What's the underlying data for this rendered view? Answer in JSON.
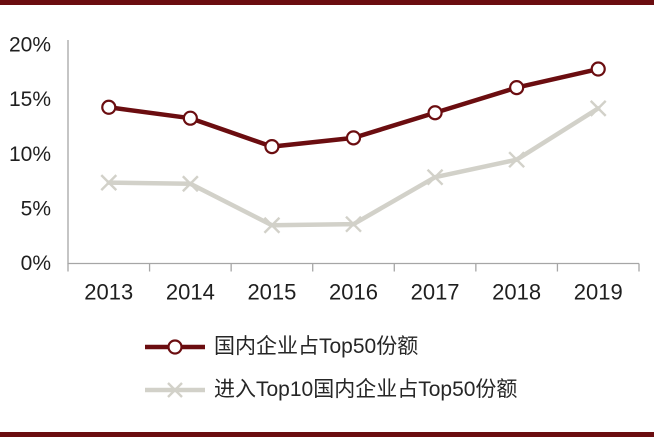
{
  "frame": {
    "color": "#6b0d10"
  },
  "axes": {
    "color": "#a6a6a6",
    "tick_label_color": "#1f1f1f"
  },
  "chart_data": {
    "type": "line",
    "title": "",
    "xlabel": "",
    "ylabel": "",
    "categories": [
      "2013",
      "2014",
      "2015",
      "2016",
      "2017",
      "2018",
      "2019"
    ],
    "series": [
      {
        "name": "国内企业占Top50份额",
        "color": "#6b0d10",
        "marker": "circle-open",
        "values": [
          14.3,
          13.3,
          10.7,
          11.5,
          13.8,
          16.1,
          17.8
        ]
      },
      {
        "name": "进入Top10国内企业占Top50份额",
        "color": "#d2d1c9",
        "marker": "x",
        "values": [
          7.4,
          7.3,
          3.5,
          3.6,
          7.9,
          9.5,
          14.2
        ]
      }
    ],
    "ylim": [
      0,
      20
    ],
    "yticks": [
      0,
      5,
      10,
      15,
      20
    ],
    "ytick_labels": [
      "0%",
      "5%",
      "10%",
      "15%",
      "20%"
    ],
    "grid": false,
    "legend_position": "bottom-left"
  }
}
